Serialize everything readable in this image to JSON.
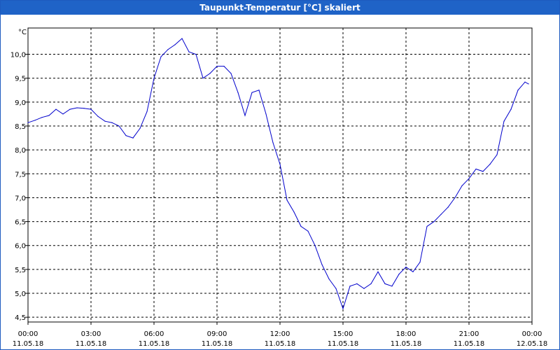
{
  "window": {
    "title": "Taupunkt-Temperatur [°C] skaliert"
  },
  "colors": {
    "titlebar": "#1f63c7",
    "line": "#0000cc",
    "grid": "#000000"
  },
  "chart_data": {
    "type": "line",
    "title": "Taupunkt-Temperatur [°C] skaliert",
    "ylabel": "°C",
    "xlabel": "",
    "ylim": [
      4.4,
      10.55
    ],
    "xlim": [
      "11.05.18 00:00",
      "12.05.18 00:00"
    ],
    "grid": true,
    "y_ticks": [
      "10,0",
      "9,5",
      "9,0",
      "8,5",
      "8,0",
      "7,5",
      "7,0",
      "6,5",
      "6,0",
      "5,5",
      "5,0",
      "4,5"
    ],
    "x_ticks": [
      {
        "time": "00:00",
        "date": "11.05.18"
      },
      {
        "time": "03:00",
        "date": "11.05.18"
      },
      {
        "time": "06:00",
        "date": "11.05.18"
      },
      {
        "time": "09:00",
        "date": "11.05.18"
      },
      {
        "time": "12:00",
        "date": "11.05.18"
      },
      {
        "time": "15:00",
        "date": "11.05.18"
      },
      {
        "time": "18:00",
        "date": "11.05.18"
      },
      {
        "time": "21:00",
        "date": "11.05.18"
      },
      {
        "time": "00:00",
        "date": "12.05.18"
      }
    ],
    "series": [
      {
        "name": "",
        "x": [
          "00:00",
          "00:20",
          "00:40",
          "01:00",
          "01:20",
          "01:40",
          "02:00",
          "02:20",
          "02:40",
          "03:00",
          "03:20",
          "03:40",
          "04:00",
          "04:20",
          "04:40",
          "05:00",
          "05:20",
          "05:40",
          "06:00",
          "06:20",
          "06:40",
          "07:00",
          "07:20",
          "07:40",
          "08:00",
          "08:20",
          "08:40",
          "09:00",
          "09:20",
          "09:40",
          "10:00",
          "10:20",
          "10:40",
          "11:00",
          "11:20",
          "11:40",
          "12:00",
          "12:20",
          "12:40",
          "13:00",
          "13:20",
          "13:40",
          "14:00",
          "14:20",
          "14:40",
          "15:00",
          "15:20",
          "15:40",
          "16:00",
          "16:20",
          "16:40",
          "17:00",
          "17:20",
          "17:40",
          "18:00",
          "18:20",
          "18:40",
          "19:00",
          "19:20",
          "19:40",
          "20:00",
          "20:20",
          "20:40",
          "21:00",
          "21:20",
          "21:40",
          "22:00",
          "22:20",
          "22:40",
          "23:00",
          "23:20",
          "23:40",
          "23:50"
        ],
        "values": [
          8.57,
          8.62,
          8.68,
          8.72,
          8.85,
          8.75,
          8.85,
          8.88,
          8.87,
          8.85,
          8.7,
          8.6,
          8.57,
          8.5,
          8.3,
          8.25,
          8.45,
          8.8,
          9.5,
          9.95,
          10.1,
          10.2,
          10.33,
          10.05,
          10.0,
          9.5,
          9.6,
          9.75,
          9.75,
          9.6,
          9.2,
          8.72,
          9.2,
          9.25,
          8.75,
          8.15,
          7.7,
          6.95,
          6.7,
          6.4,
          6.3,
          6.0,
          5.6,
          5.3,
          5.1,
          4.68,
          5.15,
          5.2,
          5.1,
          5.2,
          5.45,
          5.2,
          5.15,
          5.4,
          5.55,
          5.45,
          5.65,
          6.4,
          6.5,
          6.65,
          6.8,
          7.0,
          7.25,
          7.4,
          7.6,
          7.55,
          7.7,
          7.9,
          8.6,
          8.85,
          9.25,
          9.42,
          9.38
        ]
      }
    ]
  }
}
